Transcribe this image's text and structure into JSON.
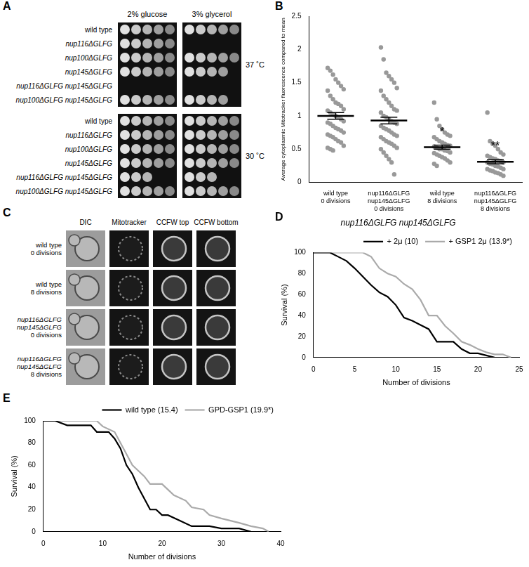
{
  "panel_a": {
    "letter": "A",
    "media": [
      "2% glucose",
      "3% glycerol"
    ],
    "blocks": [
      {
        "temperature": "37 ˚C",
        "rows": [
          {
            "strain": "wild type",
            "spots": [
              5,
              5
            ]
          },
          {
            "strain": "nup116ΔGLFG",
            "spots": [
              5,
              0
            ]
          },
          {
            "strain": "nup100ΔGLFG",
            "spots": [
              5,
              5
            ]
          },
          {
            "strain": "nup145ΔGLFG",
            "spots": [
              5,
              4
            ]
          },
          {
            "strain": "nup116ΔGLFG nup145ΔGLFG",
            "spots": [
              0,
              0
            ]
          },
          {
            "strain": "nup100ΔGLFG nup145ΔGLFG",
            "spots": [
              5,
              4
            ]
          }
        ]
      },
      {
        "temperature": "30 ˚C",
        "rows": [
          {
            "strain": "wild type",
            "spots": [
              5,
              5
            ]
          },
          {
            "strain": "nup116ΔGLFG",
            "spots": [
              5,
              5
            ]
          },
          {
            "strain": "nup100ΔGLFG",
            "spots": [
              5,
              5
            ]
          },
          {
            "strain": "nup145ΔGLFG",
            "spots": [
              5,
              5
            ]
          },
          {
            "strain": "nup116ΔGLFG nup145ΔGLFG",
            "spots": [
              3,
              3
            ]
          },
          {
            "strain": "nup100ΔGLFG nup145ΔGLFG",
            "spots": [
              5,
              5
            ]
          }
        ]
      }
    ]
  },
  "panel_c": {
    "letter": "C",
    "columns": [
      "DIC",
      "Mitotracker",
      "CCFW top",
      "CCFW bottom"
    ],
    "rows": [
      [
        "wild type",
        "0 divisions"
      ],
      [
        "wild type",
        "8 divisions"
      ],
      [
        "nup116ΔGLFG",
        "nup145ΔGLFG",
        "0 divisions"
      ],
      [
        "nup116ΔGLFG",
        "nup145ΔGLFG",
        "8 divisions"
      ]
    ]
  },
  "chart_data": [
    {
      "panel": "B",
      "type": "dot",
      "y_label": "Average cytoplasmic Mitotracker fluorescence compared to mean",
      "categories": [
        [
          "wild type",
          "0 divisions"
        ],
        [
          "nup116ΔGLFG",
          "nup145ΔGLFG",
          "0 divisions"
        ],
        [
          "wild type",
          "8 divisions"
        ],
        [
          "nup116ΔGLFG",
          "nup145ΔGLFG",
          "8 divisions"
        ]
      ],
      "points": [
        [
          1.72,
          1.68,
          1.62,
          1.55,
          1.5,
          1.45,
          1.4,
          1.38,
          1.3,
          1.25,
          1.2,
          1.18,
          1.15,
          1.1,
          1.08,
          1.05,
          1.02,
          1.0,
          0.98,
          0.95,
          0.92,
          0.9,
          0.88,
          0.85,
          0.82,
          0.8,
          0.78,
          0.75,
          0.72,
          0.7,
          0.68,
          0.65,
          0.62,
          0.6,
          0.55,
          0.52,
          0.5,
          0.48
        ],
        [
          2.03,
          1.85,
          1.65,
          1.6,
          1.55,
          1.5,
          1.42,
          1.38,
          1.3,
          1.25,
          1.2,
          1.15,
          1.1,
          1.08,
          1.05,
          1.0,
          0.98,
          0.95,
          0.92,
          0.9,
          0.88,
          0.85,
          0.82,
          0.8,
          0.78,
          0.75,
          0.72,
          0.7,
          0.68,
          0.65,
          0.62,
          0.6,
          0.58,
          0.55,
          0.52,
          0.5,
          0.45,
          0.4,
          0.35,
          0.3,
          0.12
        ],
        [
          1.2,
          0.95,
          0.85,
          0.8,
          0.75,
          0.72,
          0.7,
          0.68,
          0.65,
          0.62,
          0.6,
          0.58,
          0.56,
          0.55,
          0.54,
          0.52,
          0.5,
          0.5,
          0.48,
          0.47,
          0.45,
          0.44,
          0.42,
          0.4,
          0.38,
          0.36,
          0.33,
          0.3,
          0.28,
          0.25
        ],
        [
          1.05,
          0.62,
          0.58,
          0.55,
          0.5,
          0.45,
          0.42,
          0.4,
          0.38,
          0.36,
          0.35,
          0.33,
          0.32,
          0.3,
          0.3,
          0.28,
          0.27,
          0.25,
          0.24,
          0.22,
          0.2,
          0.2,
          0.18,
          0.17,
          0.15,
          0.14,
          0.12,
          0.1
        ]
      ],
      "means": [
        1.0,
        0.93,
        0.53,
        0.31
      ],
      "sem": [
        0.05,
        0.05,
        0.03,
        0.03
      ],
      "annotations": [
        {
          "category": 2,
          "text": "*"
        },
        {
          "category": 3,
          "text": "**"
        }
      ],
      "color": "#999999",
      "ylim": [
        0,
        2.5
      ],
      "yticks": [
        0,
        0.5,
        1,
        1.5,
        2,
        2.5
      ],
      "grid": false
    },
    {
      "panel": "D",
      "type": "line",
      "title": "nup116ΔGLFG nup145ΔGLFG",
      "x_label": "Number of divisions",
      "y_label": "Survival (%)",
      "xlim": [
        0,
        25
      ],
      "xticks": [
        0,
        5,
        10,
        15,
        20,
        25
      ],
      "ylim": [
        0,
        100
      ],
      "yticks": [
        0,
        20,
        40,
        60,
        80,
        100
      ],
      "grid": false,
      "legend": "upper right",
      "series": [
        {
          "name": "+ 2μ (10)",
          "color": "#000000",
          "x": [
            0,
            2,
            3,
            4,
            5,
            6,
            7,
            8,
            9,
            10,
            11,
            12,
            13,
            14,
            15,
            16,
            17,
            18,
            19,
            20,
            21,
            22
          ],
          "values": [
            100,
            100,
            96,
            92,
            85,
            77,
            69,
            62,
            58,
            50,
            38,
            35,
            31,
            27,
            15,
            15,
            15,
            8,
            4,
            4,
            2,
            0
          ]
        },
        {
          "name": "+ GSP1 2μ (13.9*)",
          "color": "#aaaaaa",
          "x": [
            0,
            6,
            7,
            8,
            9,
            10,
            11,
            12,
            13,
            14,
            15,
            16,
            17,
            18,
            19,
            20,
            21,
            22,
            23,
            24
          ],
          "values": [
            100,
            100,
            96,
            85,
            80,
            77,
            70,
            65,
            55,
            40,
            40,
            30,
            23,
            15,
            12,
            8,
            5,
            3,
            3,
            0
          ]
        }
      ]
    },
    {
      "panel": "E",
      "type": "line",
      "x_label": "Number of divisions",
      "y_label": "Survival (%)",
      "xlim": [
        0,
        40
      ],
      "xticks": [
        0,
        10,
        20,
        30,
        40
      ],
      "ylim": [
        0,
        100
      ],
      "yticks": [
        0,
        20,
        40,
        60,
        80,
        100
      ],
      "grid": false,
      "legend": "upper right",
      "series": [
        {
          "name": "wild type (15.4)",
          "color": "#000000",
          "x": [
            0,
            2,
            4,
            8,
            9,
            11,
            12,
            13,
            14,
            15,
            16,
            17,
            18,
            19,
            20,
            21,
            23,
            25,
            28,
            30,
            33,
            35
          ],
          "values": [
            100,
            100,
            96,
            96,
            90,
            90,
            84,
            75,
            60,
            52,
            40,
            30,
            20,
            20,
            15,
            15,
            10,
            5,
            5,
            3,
            3,
            0
          ]
        },
        {
          "name": "GPD-GSP1 (19.9*)",
          "color": "#aaaaaa",
          "x": [
            0,
            9,
            10,
            12,
            13,
            14,
            15,
            16,
            17,
            18,
            20,
            21,
            22,
            24,
            25,
            27,
            28,
            30,
            33,
            35,
            37,
            38
          ],
          "values": [
            100,
            100,
            95,
            90,
            80,
            70,
            60,
            55,
            50,
            43,
            43,
            38,
            33,
            28,
            22,
            20,
            15,
            12,
            8,
            5,
            3,
            0
          ]
        }
      ]
    }
  ]
}
